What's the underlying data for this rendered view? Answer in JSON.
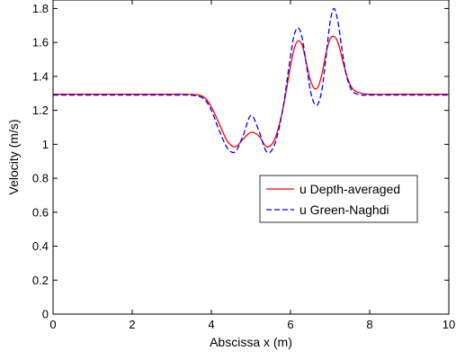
{
  "chart_data": {
    "type": "line",
    "xlabel": "Abscissa x (m)",
    "ylabel": "Velocity (m/s)",
    "xlim": [
      0,
      10
    ],
    "ylim": [
      0,
      1.85
    ],
    "xticks": [
      0,
      2,
      4,
      6,
      8,
      10
    ],
    "xtick_labels": [
      "0",
      "2",
      "4",
      "6",
      "8",
      "10"
    ],
    "yticks": [
      0,
      0.2,
      0.4,
      0.6,
      0.8,
      1.0,
      1.2,
      1.4,
      1.6,
      1.8
    ],
    "ytick_labels": [
      "0",
      "0.2",
      "0.4",
      "0.6",
      "0.8",
      "1",
      "1.2",
      "1.4",
      "1.6",
      "1.8"
    ],
    "grid": false,
    "legend_position": "center-right",
    "series": [
      {
        "name": "u Depth-averaged",
        "color": "#ff0000",
        "style": "solid",
        "x": [
          0,
          1,
          2,
          3,
          3.5,
          3.8,
          4.0,
          4.2,
          4.4,
          4.6,
          4.8,
          5.0,
          5.2,
          5.4,
          5.6,
          5.8,
          6.0,
          6.1,
          6.2,
          6.3,
          6.4,
          6.5,
          6.6,
          6.7,
          6.8,
          6.9,
          7.0,
          7.1,
          7.2,
          7.3,
          7.4,
          7.5,
          7.6,
          7.8,
          8.0,
          8.5,
          9.0,
          10
        ],
        "y": [
          1.295,
          1.295,
          1.295,
          1.295,
          1.294,
          1.28,
          1.22,
          1.12,
          1.02,
          0.985,
          1.03,
          1.07,
          1.05,
          0.985,
          1.03,
          1.2,
          1.46,
          1.57,
          1.61,
          1.58,
          1.48,
          1.38,
          1.33,
          1.34,
          1.42,
          1.54,
          1.62,
          1.635,
          1.6,
          1.51,
          1.42,
          1.355,
          1.32,
          1.3,
          1.295,
          1.295,
          1.295,
          1.295
        ]
      },
      {
        "name": "u Green-Naghdi",
        "color": "#0000ff",
        "style": "dashed",
        "x": [
          0,
          1,
          2,
          3,
          3.5,
          3.8,
          4.0,
          4.2,
          4.4,
          4.6,
          4.8,
          5.0,
          5.2,
          5.4,
          5.6,
          5.8,
          6.0,
          6.1,
          6.2,
          6.3,
          6.4,
          6.5,
          6.6,
          6.7,
          6.8,
          6.9,
          7.0,
          7.1,
          7.2,
          7.3,
          7.4,
          7.5,
          7.6,
          7.8,
          8.0,
          8.5,
          9.0,
          10
        ],
        "y": [
          1.29,
          1.29,
          1.29,
          1.29,
          1.289,
          1.27,
          1.2,
          1.08,
          0.98,
          0.955,
          1.05,
          1.17,
          1.08,
          0.955,
          1.0,
          1.2,
          1.52,
          1.65,
          1.685,
          1.62,
          1.47,
          1.32,
          1.24,
          1.24,
          1.33,
          1.52,
          1.72,
          1.8,
          1.72,
          1.56,
          1.42,
          1.34,
          1.305,
          1.29,
          1.29,
          1.29,
          1.29,
          1.29
        ]
      }
    ]
  }
}
